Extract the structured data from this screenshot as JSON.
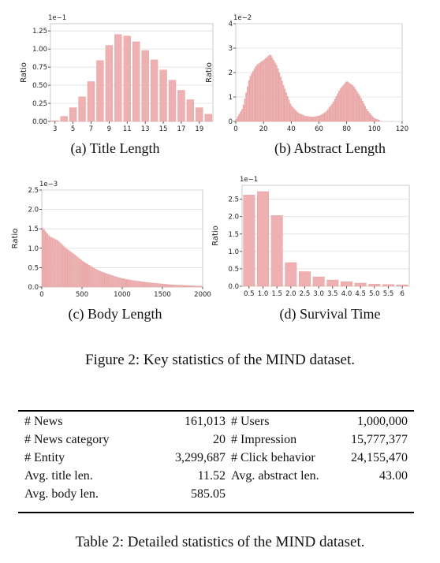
{
  "figure_caption": "Figure 2: Key statistics of the MIND dataset.",
  "table_caption": "Table 2: Detailed statistics of the MIND dataset.",
  "colors": {
    "bar": "#eeb0b0",
    "bar_edge": "#e39898",
    "grid": "#dddddd",
    "axis": "#333333"
  },
  "chart_data": [
    {
      "type": "bar",
      "caption": "(a) Title Length",
      "ylabel": "Ratio",
      "scale_note": "1e−1",
      "ylim": [
        0,
        1.35
      ],
      "yticks": [
        "0.00",
        "0.25",
        "0.50",
        "0.75",
        "1.00",
        "1.25"
      ],
      "xticks": [
        "3",
        "5",
        "7",
        "9",
        "11",
        "13",
        "15",
        "17",
        "19"
      ],
      "categories": [
        3,
        4,
        5,
        6,
        7,
        8,
        9,
        10,
        11,
        12,
        13,
        14,
        15,
        16,
        17,
        18,
        19,
        20
      ],
      "values": [
        0.01,
        0.07,
        0.19,
        0.34,
        0.55,
        0.84,
        1.05,
        1.2,
        1.18,
        1.1,
        0.98,
        0.85,
        0.71,
        0.57,
        0.43,
        0.3,
        0.19,
        0.1
      ]
    },
    {
      "type": "bar",
      "caption": "(b) Abstract Length",
      "ylabel": "Ratio",
      "scale_note": "1e−2",
      "ylim": [
        0,
        4
      ],
      "yticks": [
        "0",
        "1",
        "2",
        "3",
        "4"
      ],
      "xticks": [
        "0",
        "20",
        "40",
        "60",
        "80",
        "100",
        "120"
      ],
      "x": [
        0,
        5,
        10,
        15,
        20,
        25,
        30,
        35,
        40,
        45,
        50,
        55,
        60,
        65,
        70,
        75,
        80,
        85,
        90,
        95,
        100,
        105,
        110,
        115,
        120
      ],
      "values": [
        0.05,
        0.55,
        1.8,
        2.3,
        2.5,
        2.75,
        2.25,
        1.4,
        0.65,
        0.35,
        0.22,
        0.18,
        0.22,
        0.38,
        0.75,
        1.3,
        1.65,
        1.45,
        1.0,
        0.45,
        0.12,
        0.04,
        0.01,
        0.0,
        0.0
      ]
    },
    {
      "type": "bar",
      "caption": "(c) Body Length",
      "ylabel": "Ratio",
      "scale_note": "1e−3",
      "ylim": [
        0,
        2.5
      ],
      "yticks": [
        "0.0",
        "0.5",
        "1.0",
        "1.5",
        "2.0",
        "2.5"
      ],
      "xticks": [
        "0",
        "500",
        "1000",
        "1500",
        "2000"
      ],
      "x": [
        0,
        100,
        200,
        300,
        400,
        500,
        600,
        700,
        800,
        900,
        1000,
        1100,
        1200,
        1300,
        1400,
        1500,
        1600,
        1700,
        1800,
        1900,
        2000
      ],
      "values": [
        1.55,
        1.3,
        1.2,
        1.0,
        0.85,
        0.68,
        0.55,
        0.43,
        0.35,
        0.28,
        0.22,
        0.18,
        0.15,
        0.12,
        0.1,
        0.08,
        0.06,
        0.05,
        0.04,
        0.03,
        0.02
      ]
    },
    {
      "type": "bar",
      "caption": "(d) Survival Time",
      "ylabel": "Ratio",
      "scale_note": "1e−1",
      "ylim": [
        0,
        2.9
      ],
      "yticks": [
        "0.0",
        "0.5",
        "1.0",
        "1.5",
        "2.0",
        "2.5"
      ],
      "categories": [
        "0.5",
        "1.0",
        "1.5",
        "2.0",
        "2.5",
        "3.0",
        "3.5",
        "4.0",
        "4.5",
        "5.0",
        "5.5",
        "6"
      ],
      "values": [
        2.62,
        2.72,
        2.03,
        0.68,
        0.42,
        0.27,
        0.18,
        0.13,
        0.09,
        0.06,
        0.05,
        0.04
      ]
    }
  ],
  "table": {
    "rows": [
      [
        "# News",
        "161,013",
        "# Users",
        "1,000,000"
      ],
      [
        "# News category",
        "20",
        "# Impression",
        "15,777,377"
      ],
      [
        "# Entity",
        "3,299,687",
        "# Click behavior",
        "24,155,470"
      ],
      [
        "Avg. title len.",
        "11.52",
        "Avg. abstract len.",
        "43.00"
      ],
      [
        "Avg. body len.",
        "585.05",
        "",
        ""
      ]
    ]
  }
}
